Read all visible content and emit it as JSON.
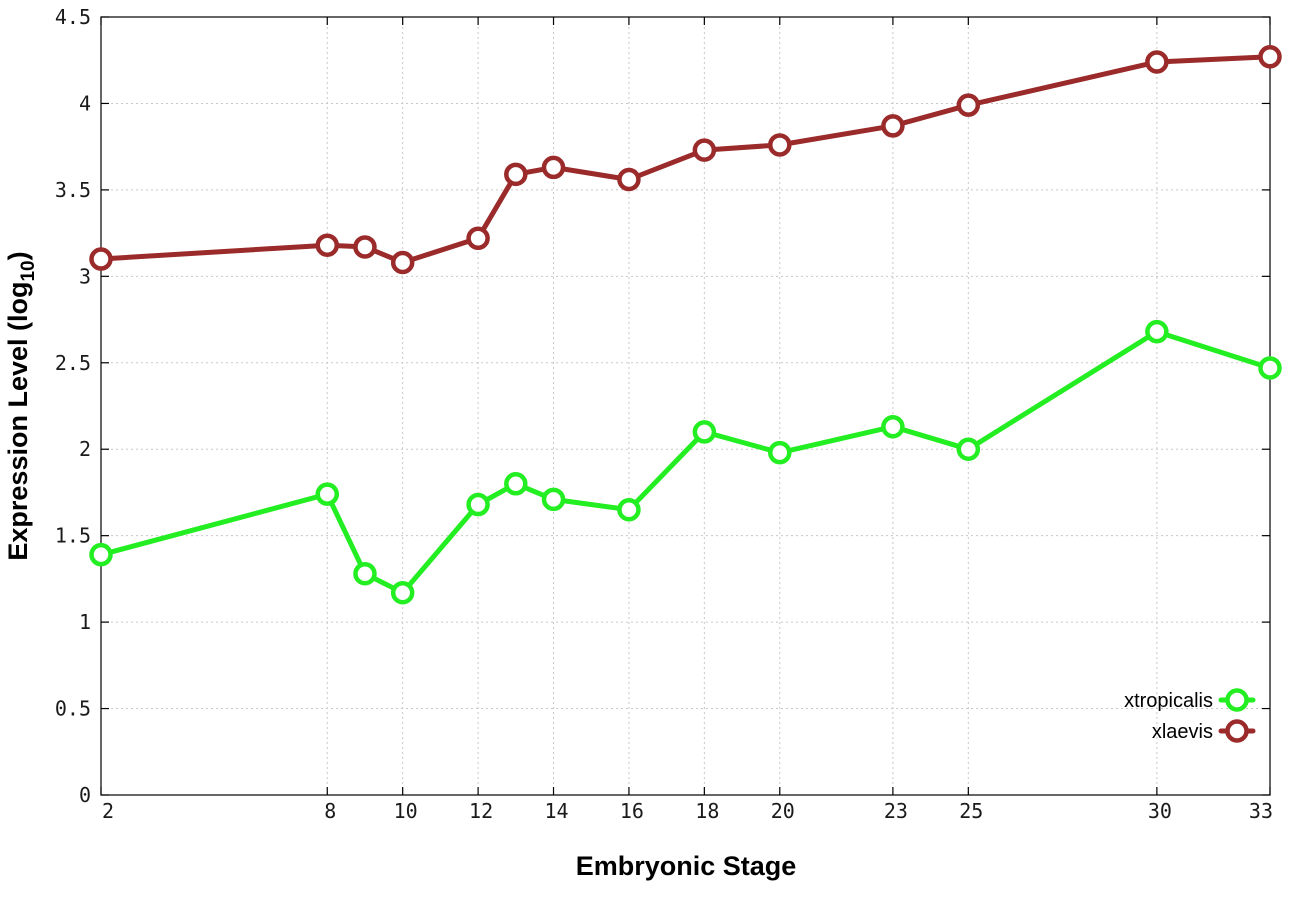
{
  "chart_data": {
    "type": "line",
    "title": "",
    "xlabel": "Embryonic Stage",
    "ylabel_main": "Expression Level (log",
    "ylabel_sub": "10",
    "ylabel_close": ")",
    "x": [
      2,
      8,
      9,
      10,
      12,
      13,
      14,
      16,
      18,
      20,
      23,
      25,
      30,
      33
    ],
    "xticks": [
      2,
      8,
      10,
      12,
      14,
      16,
      18,
      20,
      23,
      25,
      30,
      33
    ],
    "xtick_labels": [
      "2",
      "8",
      "10",
      "12",
      "14",
      "16",
      "18",
      "20",
      "23",
      "25",
      "30",
      "33"
    ],
    "xlim": [
      2,
      33
    ],
    "yticks": [
      0,
      0.5,
      1,
      1.5,
      2,
      2.5,
      3,
      3.5,
      4,
      4.5
    ],
    "ytick_labels": [
      "0",
      "0.5",
      "1",
      "1.5",
      "2",
      "2.5",
      "3",
      "3.5",
      "4",
      "4.5"
    ],
    "ylim": [
      0,
      4.5
    ],
    "grid": true,
    "legend_position": "bottom-right",
    "series": [
      {
        "name": "xtropicalis",
        "color": "#22ee22",
        "values": [
          1.39,
          1.74,
          1.28,
          1.17,
          1.68,
          1.8,
          1.71,
          1.65,
          2.1,
          1.98,
          2.13,
          2.0,
          2.68,
          2.47
        ]
      },
      {
        "name": "xlaevis",
        "color": "#9b2a2a",
        "values": [
          3.1,
          3.18,
          3.17,
          3.08,
          3.22,
          3.59,
          3.63,
          3.56,
          3.73,
          3.76,
          3.87,
          3.99,
          4.24,
          4.27
        ]
      }
    ]
  }
}
